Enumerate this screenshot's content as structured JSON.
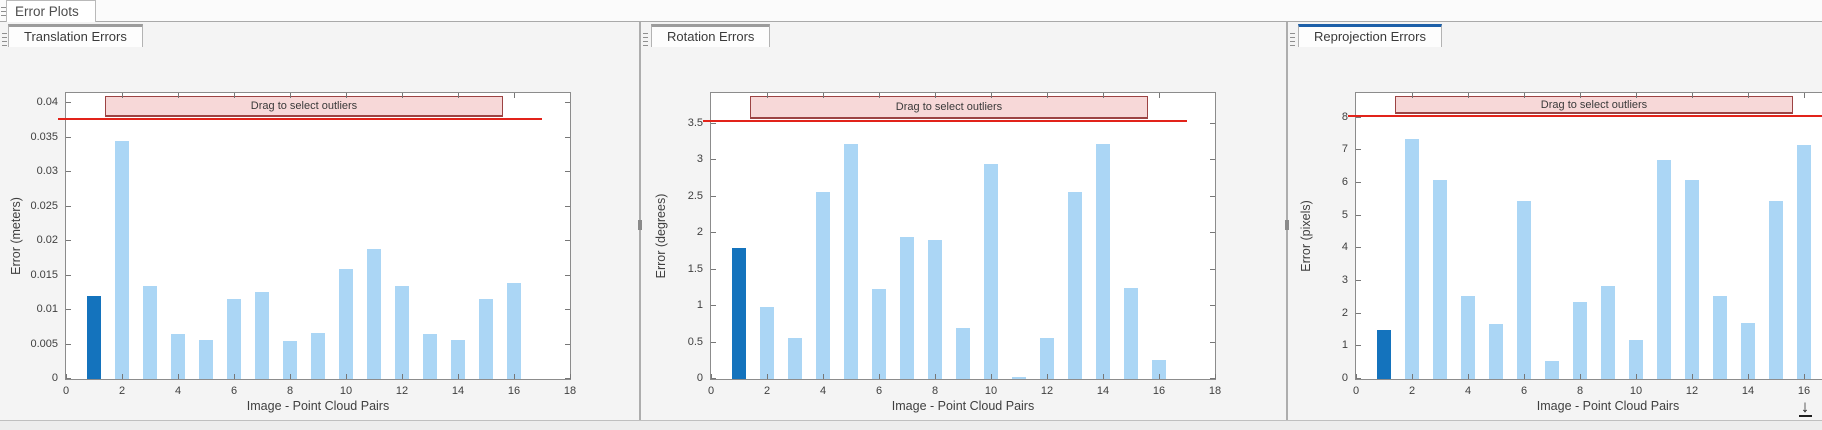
{
  "top_bar": {
    "group_tab_label": "Error Plots"
  },
  "app": {
    "colors": {
      "bar": "#abd6f5",
      "selected_bar": "#1473bd",
      "threshold_line": "#e2231a",
      "band_fill": "#f7d8d8",
      "band_border": "#9c4343",
      "active_tab_accent": "#1d5fa8",
      "inactive_tab_accent": "#9c9c9c"
    }
  },
  "panels": [
    {
      "tab_label": "Translation Errors",
      "active": false,
      "chart_index": 0
    },
    {
      "tab_label": "Rotation Errors",
      "active": false,
      "chart_index": 1
    },
    {
      "tab_label": "Reprojection Errors",
      "active": true,
      "chart_index": 2
    }
  ],
  "chart_data": [
    {
      "type": "bar",
      "title": "Translation Errors",
      "xlabel": "Image - Point Cloud Pairs",
      "ylabel": "Error (meters)",
      "categories": [
        1,
        2,
        3,
        4,
        5,
        6,
        7,
        8,
        9,
        10,
        11,
        12,
        13,
        14,
        15,
        16
      ],
      "values": [
        0.012,
        0.0345,
        0.0135,
        0.0065,
        0.0057,
        0.0116,
        0.0126,
        0.0055,
        0.0067,
        0.016,
        0.0188,
        0.0135,
        0.0065,
        0.0057,
        0.0116,
        0.014
      ],
      "highlight_index": 0,
      "xlim": [
        0,
        18
      ],
      "ylim": [
        0,
        0.0415
      ],
      "xticks": [
        0,
        2,
        4,
        6,
        8,
        10,
        12,
        14,
        16,
        18
      ],
      "xtick_labels": [
        "0",
        "2",
        "4",
        "6",
        "8",
        "10",
        "12",
        "14",
        "16",
        "18"
      ],
      "yticks": [
        0,
        0.005,
        0.01,
        0.015,
        0.02,
        0.025,
        0.03,
        0.035,
        0.04
      ],
      "ytick_labels": [
        "0",
        "0.005",
        "0.01",
        "0.015",
        "0.02",
        "0.025",
        "0.03",
        "0.035",
        "0.04"
      ],
      "threshold": 0.0378,
      "threshold_x": [
        -0.3,
        17.0
      ],
      "band": {
        "label": "Drag to select outliers",
        "x_start": 1.4,
        "x_end": 15.6
      },
      "grid": false,
      "legend": null
    },
    {
      "type": "bar",
      "title": "Rotation Errors",
      "xlabel": "Image - Point Cloud Pairs",
      "ylabel": "Error (degrees)",
      "categories": [
        1,
        2,
        3,
        4,
        5,
        6,
        7,
        8,
        9,
        10,
        11,
        12,
        13,
        14,
        15,
        16
      ],
      "values": [
        1.8,
        0.98,
        0.56,
        2.56,
        3.22,
        1.24,
        1.94,
        1.91,
        0.7,
        2.95,
        0.03,
        0.56,
        2.56,
        3.22,
        1.25,
        0.26
      ],
      "highlight_index": 0,
      "xlim": [
        0,
        18
      ],
      "ylim": [
        0,
        3.92
      ],
      "xticks": [
        0,
        2,
        4,
        6,
        8,
        10,
        12,
        14,
        16,
        18
      ],
      "xtick_labels": [
        "0",
        "2",
        "4",
        "6",
        "8",
        "10",
        "12",
        "14",
        "16",
        "18"
      ],
      "yticks": [
        0,
        0.5,
        1,
        1.5,
        2,
        2.5,
        3,
        3.5
      ],
      "ytick_labels": [
        "0",
        "0.5",
        "1",
        "1.5",
        "2",
        "2.5",
        "3",
        "3.5"
      ],
      "threshold": 3.55,
      "threshold_x": [
        -0.3,
        17.0
      ],
      "band": {
        "label": "Drag to select outliers",
        "x_start": 1.4,
        "x_end": 15.6
      },
      "grid": false,
      "legend": null
    },
    {
      "type": "bar",
      "title": "Reprojection Errors",
      "xlabel": "Image - Point Cloud Pairs",
      "ylabel": "Error (pixels)",
      "categories": [
        1,
        2,
        3,
        4,
        5,
        6,
        7,
        8,
        9,
        10,
        11,
        12,
        13,
        14,
        15,
        16
      ],
      "values": [
        1.5,
        7.35,
        6.1,
        2.55,
        1.68,
        5.45,
        0.56,
        2.37,
        2.86,
        1.2,
        6.7,
        6.1,
        2.55,
        1.7,
        5.45,
        7.15
      ],
      "highlight_index": 0,
      "xlim": [
        0,
        18
      ],
      "ylim": [
        0,
        8.75
      ],
      "xticks": [
        0,
        2,
        4,
        6,
        8,
        10,
        12,
        14,
        16,
        18
      ],
      "xtick_labels": [
        "0",
        "2",
        "4",
        "6",
        "8",
        "10",
        "12",
        "14",
        "16",
        "18"
      ],
      "yticks": [
        0,
        1,
        2,
        3,
        4,
        5,
        6,
        7,
        8
      ],
      "ytick_labels": [
        "0",
        "1",
        "2",
        "3",
        "4",
        "5",
        "6",
        "7",
        "8"
      ],
      "threshold": 8.07,
      "threshold_x": [
        -0.3,
        17.0
      ],
      "band": {
        "label": "Drag to select outliers",
        "x_start": 1.4,
        "x_end": 15.6
      },
      "grid": false,
      "legend": null
    }
  ],
  "icons": {
    "export_arrow": "↓"
  }
}
